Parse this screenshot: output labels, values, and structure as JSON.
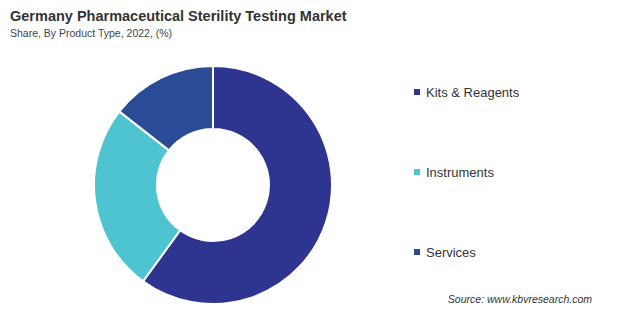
{
  "chart_data": {
    "type": "pie",
    "title": "Germany Pharmaceutical Sterility Testing Market",
    "subtitle": "Share, By Product Type, 2022, (%)",
    "categories": [
      "Kits & Reagents",
      "Instruments",
      "Services"
    ],
    "values": [
      60,
      25.6,
      14.4
    ],
    "colors": [
      "#2e3591",
      "#4fc4d1",
      "#2a4c97"
    ],
    "legend": "right",
    "data_labels": false,
    "annotations": [
      "Source: www.kbvresearch.com"
    ]
  }
}
